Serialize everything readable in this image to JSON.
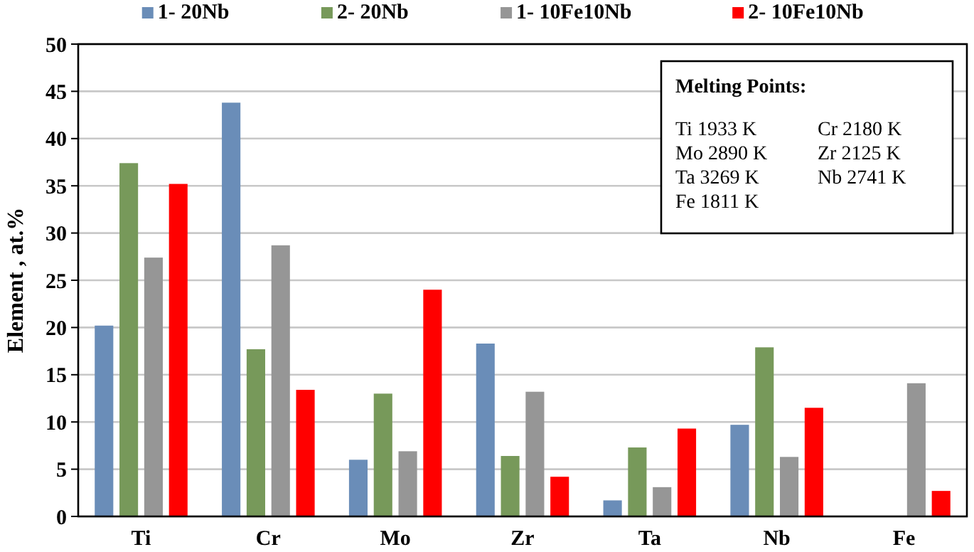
{
  "chart_data": {
    "type": "bar",
    "ylabel": "Element , at.%",
    "categories": [
      "Ti",
      "Cr",
      "Mo",
      "Zr",
      "Ta",
      "Nb",
      "Fe"
    ],
    "series": [
      {
        "name": "1- 20Nb",
        "color": "#6a8db8",
        "values": [
          20.2,
          43.8,
          6,
          18.3,
          1.7,
          9.7,
          null
        ]
      },
      {
        "name": "2- 20Nb",
        "color": "#77995a",
        "values": [
          37.4,
          17.7,
          13,
          6.4,
          7.3,
          17.9,
          null
        ]
      },
      {
        "name": "1- 10Fe10Nb",
        "color": "#969696",
        "values": [
          27.4,
          28.7,
          6.9,
          13.2,
          3.1,
          6.3,
          14.1
        ]
      },
      {
        "name": "2- 10Fe10Nb",
        "color": "#ff0000",
        "values": [
          35.2,
          13.4,
          24,
          4.2,
          9.3,
          11.5,
          2.7
        ]
      }
    ],
    "ylim": [
      0,
      50
    ],
    "yticks": [
      0,
      5,
      10,
      15,
      20,
      25,
      30,
      35,
      40,
      45,
      50
    ],
    "grid": "y",
    "legend": "top",
    "annotations": [
      "Melting Points:",
      "Ti 1933 K",
      "Cr 2180 K",
      "Mo 2890 K",
      "Zr 2125 K",
      "Ta 3269 K",
      "Nb 2741 K",
      "Fe 1811 K"
    ]
  }
}
